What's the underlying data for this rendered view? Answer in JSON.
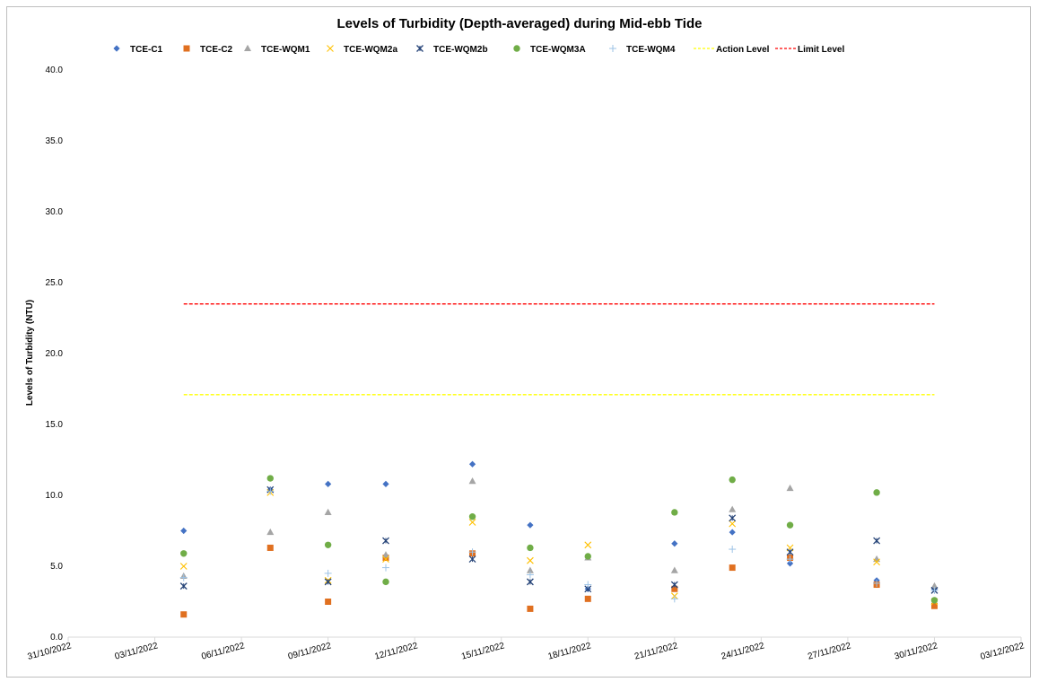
{
  "chart_data": {
    "type": "scatter",
    "title": "Levels of Turbidity (Depth-averaged) during Mid-ebb Tide",
    "xlabel": "",
    "ylabel": "Levels of Turbidity (NTU)",
    "ylim": [
      0,
      40
    ],
    "yticks": [
      "0.0",
      "5.0",
      "10.0",
      "15.0",
      "20.0",
      "25.0",
      "30.0",
      "35.0",
      "40.0"
    ],
    "xlim": [
      "2022-10-31",
      "2022-12-03"
    ],
    "xticks": [
      "31/10/2022",
      "03/11/2022",
      "06/11/2022",
      "09/11/2022",
      "12/11/2022",
      "15/11/2022",
      "18/11/2022",
      "21/11/2022",
      "24/11/2022",
      "27/11/2022",
      "30/11/2022",
      "03/12/2022"
    ],
    "grid": false,
    "legend_position": "top",
    "x": [
      "2022-11-04",
      "2022-11-07",
      "2022-11-09",
      "2022-11-11",
      "2022-11-14",
      "2022-11-16",
      "2022-11-18",
      "2022-11-21",
      "2022-11-23",
      "2022-11-25",
      "2022-11-28",
      "2022-11-30"
    ],
    "series": [
      {
        "name": "TCE-C1",
        "marker": "diamond",
        "color": "#4472c4",
        "values": [
          7.5,
          10.4,
          10.8,
          10.8,
          12.2,
          7.9,
          3.4,
          6.6,
          7.4,
          5.2,
          4.0,
          3.4
        ]
      },
      {
        "name": "TCE-C2",
        "marker": "square",
        "color": "#e07020",
        "values": [
          1.6,
          6.3,
          2.5,
          5.6,
          5.9,
          2.0,
          2.7,
          3.4,
          4.9,
          5.6,
          3.7,
          2.2
        ]
      },
      {
        "name": "TCE-WQM1",
        "marker": "triangle",
        "color": "#a5a5a5",
        "values": [
          4.3,
          7.4,
          8.8,
          5.8,
          11.0,
          4.7,
          5.6,
          4.7,
          9.0,
          10.5,
          5.5,
          3.6
        ]
      },
      {
        "name": "TCE-WQM2a",
        "marker": "x",
        "color": "#ffc000",
        "values": [
          5.0,
          10.2,
          4.0,
          5.5,
          8.1,
          5.4,
          6.5,
          2.9,
          8.0,
          6.3,
          5.3,
          2.5
        ]
      },
      {
        "name": "TCE-WQM2b",
        "marker": "star",
        "color": "#264478",
        "values": [
          3.6,
          10.4,
          3.9,
          6.8,
          5.5,
          3.9,
          3.4,
          3.7,
          8.4,
          6.0,
          6.8,
          3.3
        ]
      },
      {
        "name": "TCE-WQM3A",
        "marker": "circle",
        "color": "#70ad47",
        "values": [
          5.9,
          11.2,
          6.5,
          3.9,
          8.5,
          6.3,
          5.7,
          8.8,
          11.1,
          7.9,
          10.2,
          2.6
        ]
      },
      {
        "name": "TCE-WQM4",
        "marker": "plus",
        "color": "#9dc3e6",
        "values": [
          4.2,
          10.3,
          4.5,
          4.9,
          6.0,
          4.4,
          3.7,
          2.7,
          6.2,
          5.5,
          3.8,
          3.3
        ]
      }
    ],
    "reference_lines": [
      {
        "name": "Action Level",
        "value": 17.1,
        "color": "#ffff00",
        "style": "dashed",
        "from": "2022-11-04",
        "to": "2022-11-30"
      },
      {
        "name": "Limit Level",
        "value": 23.5,
        "color": "#ff0000",
        "style": "dashed",
        "from": "2022-11-04",
        "to": "2022-11-30"
      }
    ]
  }
}
